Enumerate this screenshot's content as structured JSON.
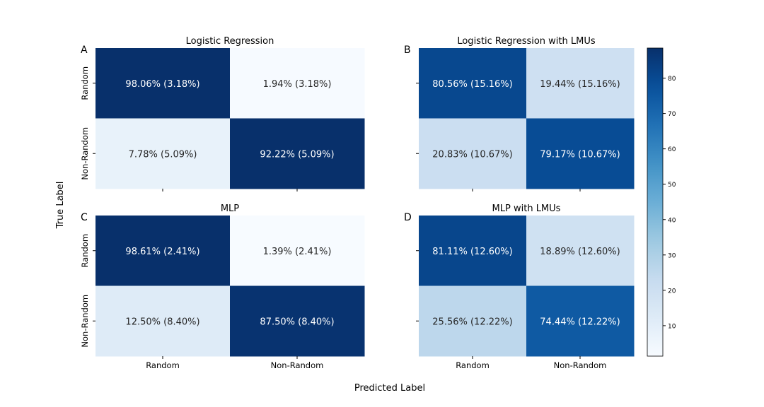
{
  "chart_data": {
    "type": "heatmap",
    "figure": {
      "xlabel": "Predicted Label",
      "ylabel": "True Label"
    },
    "categories": [
      "Random",
      "Non-Random"
    ],
    "panels": [
      {
        "letter": "A",
        "title": "Logistic Regression",
        "values": [
          [
            98.06,
            1.94
          ],
          [
            7.78,
            92.22
          ]
        ],
        "labels": [
          [
            "98.06% (3.18%)",
            "1.94% (3.18%)"
          ],
          [
            "7.78% (5.09%)",
            "92.22% (5.09%)"
          ]
        ]
      },
      {
        "letter": "B",
        "title": "Logistic Regression with LMUs",
        "values": [
          [
            80.56,
            19.44
          ],
          [
            20.83,
            79.17
          ]
        ],
        "labels": [
          [
            "80.56% (15.16%)",
            "19.44% (15.16%)"
          ],
          [
            "20.83% (10.67%)",
            "79.17% (10.67%)"
          ]
        ]
      },
      {
        "letter": "C",
        "title": "MLP",
        "values": [
          [
            98.61,
            1.39
          ],
          [
            12.5,
            87.5
          ]
        ],
        "labels": [
          [
            "98.61% (2.41%)",
            "1.39% (2.41%)"
          ],
          [
            "12.50% (8.40%)",
            "87.50% (8.40%)"
          ]
        ]
      },
      {
        "letter": "D",
        "title": "MLP with LMUs",
        "values": [
          [
            81.11,
            18.89
          ],
          [
            25.56,
            74.44
          ]
        ],
        "labels": [
          [
            "81.11% (12.60%)",
            "18.89% (12.60%)"
          ],
          [
            "25.56% (12.22%)",
            "74.44% (12.22%)"
          ]
        ]
      }
    ],
    "colorbar": {
      "colormap": "Blues",
      "range": [
        1.39,
        88.5
      ],
      "ticks": [
        10,
        20,
        30,
        40,
        50,
        60,
        70,
        80
      ]
    },
    "legend": "none"
  }
}
